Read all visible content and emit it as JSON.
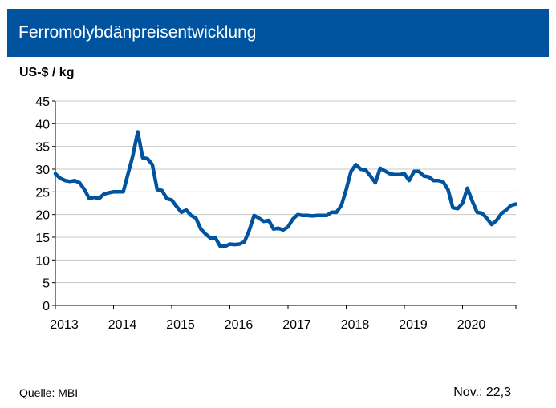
{
  "title": "Ferromolybdänpreisentwicklung",
  "unit_label": "US-$ / kg",
  "source": "Quelle: MBI",
  "latest": "Nov.: 22,3",
  "colors": {
    "header_bg": "#00549f",
    "line": "#00549f",
    "grid": "#c8c8c8",
    "axis": "#000000"
  },
  "chart_data": {
    "type": "line",
    "title": "Ferromolybdänpreisentwicklung",
    "ylabel": "US-$ / kg",
    "xlabel": "",
    "ylim": [
      0,
      45
    ],
    "yticks": [
      0,
      5,
      10,
      15,
      20,
      25,
      30,
      35,
      40,
      45
    ],
    "xlim": [
      2013,
      2020.917
    ],
    "xticks": [
      "2013",
      "2014",
      "2015",
      "2016",
      "2017",
      "2018",
      "2019",
      "2020"
    ],
    "grid": "horizontal",
    "series": [
      {
        "x": [
          2013.0,
          2013.083,
          2013.167,
          2013.25,
          2013.333,
          2013.417,
          2013.5,
          2013.583,
          2013.667,
          2013.75,
          2013.833,
          2013.917,
          2014.0,
          2014.083,
          2014.167,
          2014.25,
          2014.333,
          2014.417,
          2014.5,
          2014.583,
          2014.667,
          2014.75,
          2014.833,
          2014.917,
          2015.0,
          2015.083,
          2015.167,
          2015.25,
          2015.333,
          2015.417,
          2015.5,
          2015.583,
          2015.667,
          2015.75,
          2015.833,
          2015.917,
          2016.0,
          2016.083,
          2016.167,
          2016.25,
          2016.333,
          2016.417,
          2016.5,
          2016.583,
          2016.667,
          2016.75,
          2016.833,
          2016.917,
          2017.0,
          2017.083,
          2017.167,
          2017.25,
          2017.333,
          2017.417,
          2017.5,
          2017.583,
          2017.667,
          2017.75,
          2017.833,
          2017.917,
          2018.0,
          2018.083,
          2018.167,
          2018.25,
          2018.333,
          2018.417,
          2018.5,
          2018.583,
          2018.667,
          2018.75,
          2018.833,
          2018.917,
          2019.0,
          2019.083,
          2019.167,
          2019.25,
          2019.333,
          2019.417,
          2019.5,
          2019.583,
          2019.667,
          2019.75,
          2019.833,
          2019.917,
          2020.0,
          2020.083,
          2020.167,
          2020.25,
          2020.333,
          2020.417,
          2020.5,
          2020.583,
          2020.667,
          2020.75,
          2020.833,
          2020.917
        ],
        "values": [
          29.0,
          28.0,
          27.5,
          27.3,
          27.5,
          27.0,
          25.5,
          23.5,
          23.8,
          23.5,
          24.5,
          24.8,
          25.0,
          25.0,
          25.0,
          29.0,
          33.0,
          38.2,
          32.5,
          32.3,
          31.0,
          25.5,
          25.3,
          23.5,
          23.2,
          21.8,
          20.5,
          21.0,
          19.8,
          19.2,
          16.8,
          15.7,
          14.8,
          14.9,
          13.0,
          13.0,
          13.5,
          13.4,
          13.5,
          14.0,
          16.5,
          19.8,
          19.2,
          18.5,
          18.7,
          16.8,
          17.0,
          16.6,
          17.3,
          19.0,
          20.0,
          19.8,
          19.8,
          19.7,
          19.8,
          19.8,
          19.8,
          20.5,
          20.5,
          22.0,
          25.5,
          29.5,
          31.0,
          30.0,
          29.8,
          28.5,
          27.0,
          30.2,
          29.6,
          29.0,
          28.8,
          28.8,
          29.0,
          27.5,
          29.5,
          29.5,
          28.5,
          28.3,
          27.5,
          27.5,
          27.2,
          25.5,
          21.5,
          21.3,
          22.5,
          25.8,
          23.0,
          20.5,
          20.3,
          19.2,
          17.8,
          18.7,
          20.2,
          21.0,
          22.0,
          22.3
        ]
      }
    ]
  }
}
